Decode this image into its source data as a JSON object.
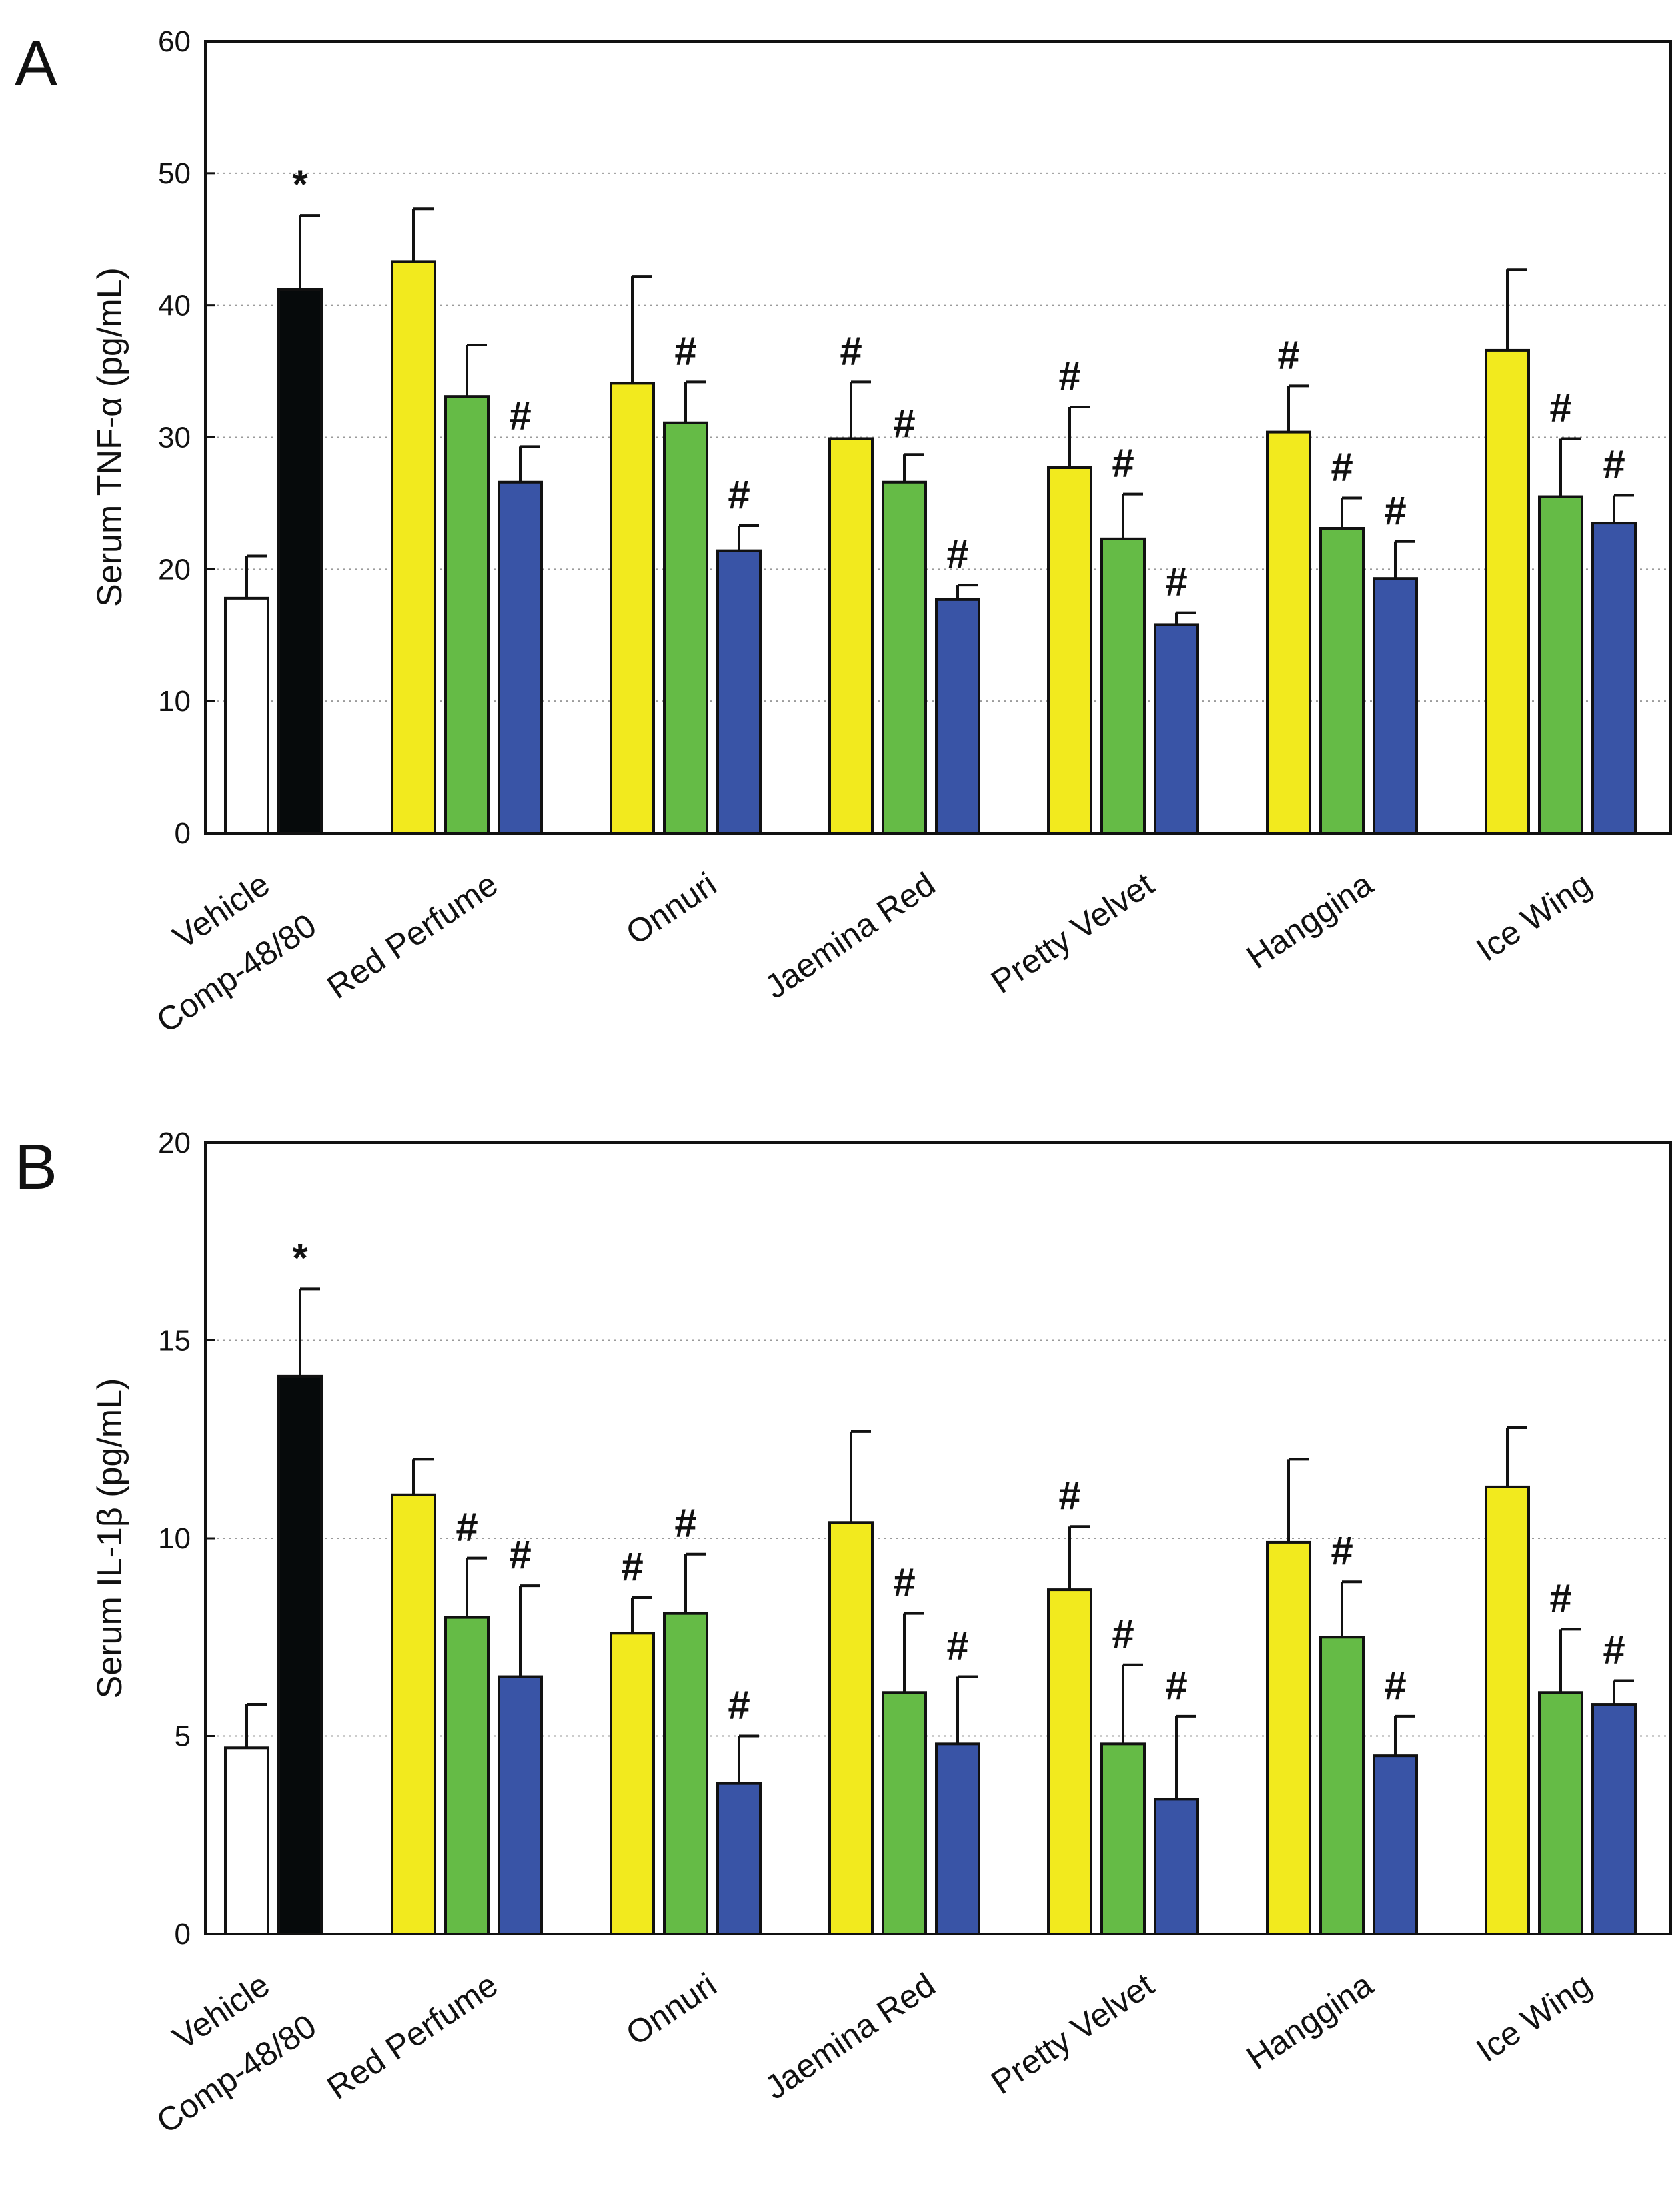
{
  "colors": {
    "vehicle": "#ffffff",
    "comp4880": "#060a0b",
    "dose_low": "#f2ea1e",
    "dose_mid": "#65bb46",
    "dose_high": "#3954a6",
    "outline": "#111111",
    "grid": "#9a9a9a"
  },
  "chart_data": [
    {
      "type": "bar",
      "panel": "A",
      "ylabel": "Serum TNF-α (pg/mL)",
      "ylim": [
        0,
        60
      ],
      "yticks": [
        0,
        10,
        20,
        30,
        40,
        50,
        60
      ],
      "grid": "horizontal dotted",
      "controls": [
        {
          "label": "Vehicle",
          "value": 17.8,
          "error": 3.2,
          "color_key": "vehicle",
          "mark": ""
        },
        {
          "label": "Comp-48/80",
          "value": 41.2,
          "error": 5.6,
          "color_key": "comp4880",
          "mark": "*"
        }
      ],
      "groups": [
        {
          "label": "Red Perfume",
          "values": [
            43.3,
            33.1,
            26.6
          ],
          "errors": [
            4.0,
            3.9,
            2.7
          ],
          "marks": [
            "",
            "",
            "#"
          ]
        },
        {
          "label": "Onnuri",
          "values": [
            34.1,
            31.1,
            21.4
          ],
          "errors": [
            8.1,
            3.1,
            1.9
          ],
          "marks": [
            "",
            "#",
            "#"
          ]
        },
        {
          "label": "Jaemina Red",
          "values": [
            29.9,
            26.6,
            17.7
          ],
          "errors": [
            4.3,
            2.1,
            1.1
          ],
          "marks": [
            "#",
            "#",
            "#"
          ]
        },
        {
          "label": "Pretty Velvet",
          "values": [
            27.7,
            22.3,
            15.8
          ],
          "errors": [
            4.6,
            3.4,
            0.9
          ],
          "marks": [
            "#",
            "#",
            "#"
          ]
        },
        {
          "label": "Hanggina",
          "values": [
            30.4,
            23.1,
            19.3
          ],
          "errors": [
            3.5,
            2.3,
            2.8
          ],
          "marks": [
            "#",
            "#",
            "#"
          ]
        },
        {
          "label": "Ice Wing",
          "values": [
            36.6,
            25.5,
            23.5
          ],
          "errors": [
            6.1,
            4.4,
            2.1
          ],
          "marks": [
            "",
            "#",
            "#"
          ]
        }
      ]
    },
    {
      "type": "bar",
      "panel": "B",
      "ylabel": "Serum IL-1β (pg/mL)",
      "ylim": [
        0,
        20
      ],
      "yticks": [
        0,
        5,
        10,
        15,
        20
      ],
      "grid": "horizontal dotted",
      "controls": [
        {
          "label": "Vehicle",
          "value": 4.7,
          "error": 1.1,
          "color_key": "vehicle",
          "mark": ""
        },
        {
          "label": "Comp-48/80",
          "value": 14.1,
          "error": 2.2,
          "color_key": "comp4880",
          "mark": "*"
        }
      ],
      "groups": [
        {
          "label": "Red Perfume",
          "values": [
            11.1,
            8.0,
            6.5
          ],
          "errors": [
            0.9,
            1.5,
            2.3
          ],
          "marks": [
            "",
            "#",
            "#"
          ]
        },
        {
          "label": "Onnuri",
          "values": [
            7.6,
            8.1,
            3.8
          ],
          "errors": [
            0.9,
            1.5,
            1.2
          ],
          "marks": [
            "#",
            "#",
            "#"
          ]
        },
        {
          "label": "Jaemina Red",
          "values": [
            10.4,
            6.1,
            4.8
          ],
          "errors": [
            2.3,
            2.0,
            1.7
          ],
          "marks": [
            "",
            "#",
            "#"
          ]
        },
        {
          "label": "Pretty Velvet",
          "values": [
            8.7,
            4.8,
            3.4
          ],
          "errors": [
            1.6,
            2.0,
            2.1
          ],
          "marks": [
            "#",
            "#",
            "#"
          ]
        },
        {
          "label": "Hanggina",
          "values": [
            9.9,
            7.5,
            4.5
          ],
          "errors": [
            2.1,
            1.4,
            1.0
          ],
          "marks": [
            "",
            "#",
            "#"
          ]
        },
        {
          "label": "Ice Wing",
          "values": [
            11.3,
            6.1,
            5.8
          ],
          "errors": [
            1.5,
            1.6,
            0.6
          ],
          "marks": [
            "",
            "#",
            "#"
          ]
        }
      ]
    }
  ]
}
